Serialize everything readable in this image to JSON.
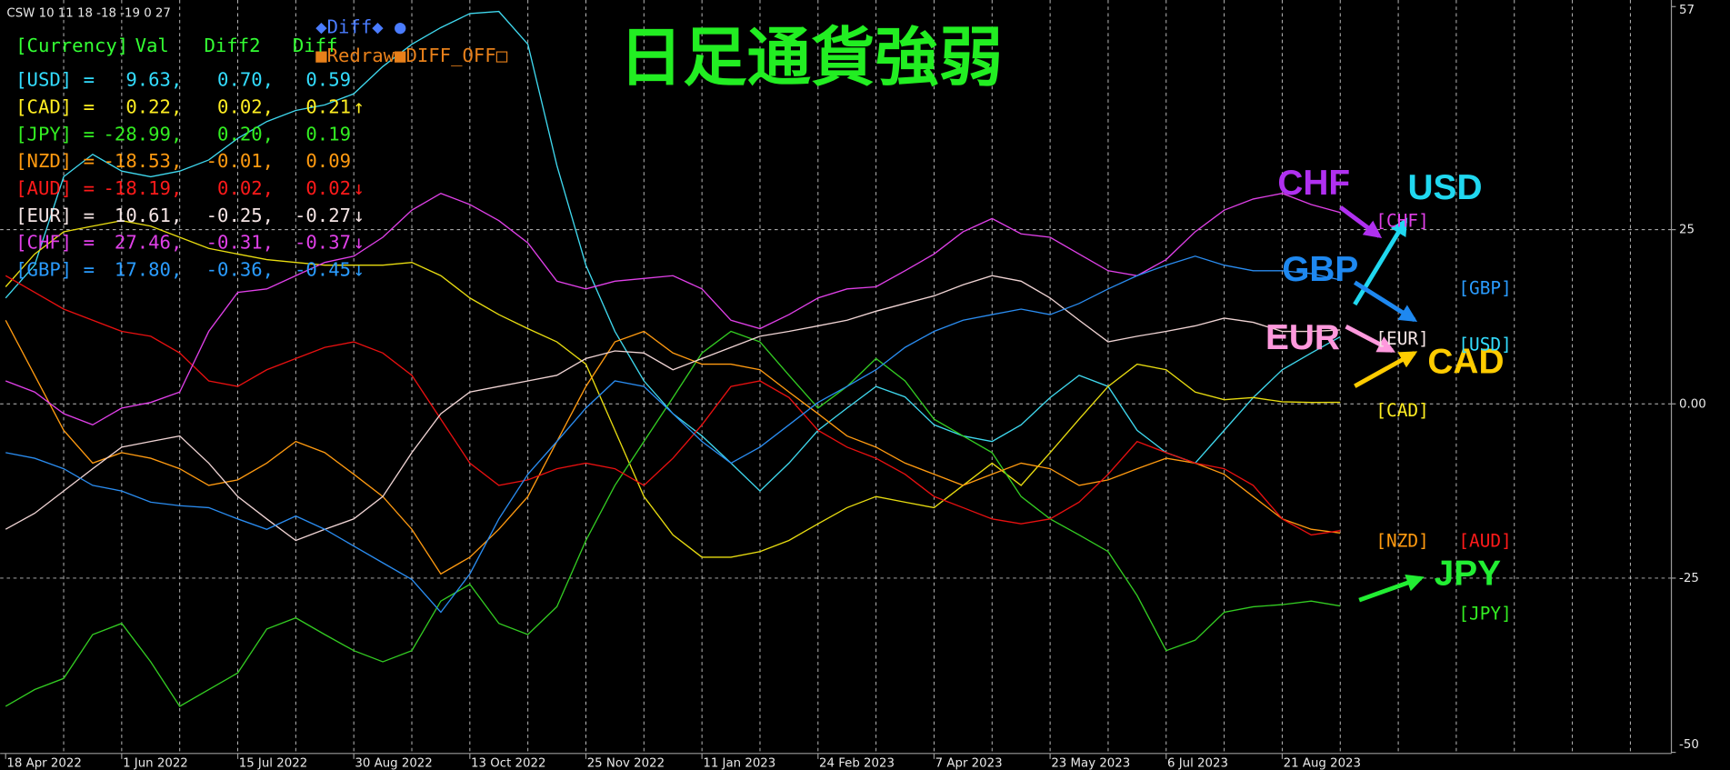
{
  "chart_data": {
    "type": "line",
    "title": "日足通貨強弱",
    "header_text": "CSW 10 11 18 -18 -19 0 27",
    "buttons": [
      "◆Diff◆ ●",
      "■Redraw■DIFF_OFF□"
    ],
    "categories": [
      "18 Apr 2022",
      null,
      null,
      null,
      "1 Jun 2022",
      null,
      null,
      null,
      "15 Jul 2022",
      null,
      null,
      null,
      "30 Aug 2022",
      null,
      null,
      null,
      "13 Oct 2022",
      null,
      null,
      null,
      "25 Nov 2022",
      null,
      null,
      null,
      "11 Jan 2023",
      null,
      null,
      null,
      "24 Feb 2023",
      null,
      null,
      null,
      "7 Apr 2023",
      null,
      null,
      null,
      "23 May 2023",
      null,
      null,
      null,
      "6 Jul 2023",
      null,
      null,
      null,
      "21 Aug 2023",
      null,
      null,
      null,
      null,
      null,
      null,
      null,
      null,
      null,
      null,
      null,
      null
    ],
    "ylim": [
      -50,
      57
    ],
    "yticks": [
      57,
      25,
      {
        "value": 0,
        "label": "0.00"
      },
      -25,
      -50
    ],
    "grid": true,
    "series": [
      {
        "name": "USD",
        "color": "#3fd8ee",
        "values": [
          15.2,
          19.9,
          32.6,
          35.8,
          33.4,
          32.6,
          33.4,
          35.0,
          38.1,
          40.5,
          42.1,
          42.9,
          44.5,
          48.4,
          51.6,
          54.0,
          56.0,
          56.3,
          51.6,
          34.2,
          19.9,
          10.4,
          3.3,
          -1.4,
          -4.6,
          -8.5,
          -12.5,
          -8.5,
          -3.8,
          -0.6,
          2.5,
          1.0,
          -3.0,
          -4.6,
          -5.4,
          -3.0,
          0.9,
          4.1,
          2.5,
          -3.8,
          -7.0,
          -8.5,
          -3.8,
          0.9,
          4.9,
          7.3,
          9.63,
          null,
          null,
          null,
          null,
          null,
          null,
          null,
          null,
          null,
          null
        ]
      },
      {
        "name": "CAD",
        "color": "#e8dc10",
        "values": [
          16.8,
          21.5,
          24.7,
          25.5,
          26.3,
          25.5,
          23.9,
          22.3,
          21.5,
          20.7,
          20.3,
          19.9,
          19.9,
          19.9,
          20.3,
          18.4,
          15.2,
          12.8,
          10.8,
          8.9,
          5.7,
          -3.8,
          -13.3,
          -18.8,
          -22.0,
          -22.0,
          -21.2,
          -19.6,
          -17.2,
          -14.9,
          -13.3,
          -14.1,
          -14.9,
          -11.7,
          -8.5,
          -11.7,
          -7.0,
          -2.2,
          2.5,
          5.7,
          4.9,
          1.7,
          0.6,
          0.9,
          0.3,
          0.2,
          0.22,
          null,
          null,
          null,
          null,
          null,
          null,
          null,
          null,
          null,
          null
        ]
      },
      {
        "name": "JPY",
        "color": "#33cc22",
        "values": [
          -43.4,
          -41.0,
          -39.4,
          -33.1,
          -31.5,
          -37.0,
          -43.4,
          -41.0,
          -38.6,
          -32.3,
          -30.7,
          -33.1,
          -35.4,
          -37.0,
          -35.4,
          -28.3,
          -25.9,
          -31.5,
          -33.1,
          -29.1,
          -19.6,
          -11.7,
          -5.4,
          0.9,
          7.3,
          10.4,
          8.9,
          4.1,
          -0.6,
          2.5,
          6.5,
          3.3,
          -2.2,
          -4.6,
          -7.0,
          -13.3,
          -16.5,
          -18.8,
          -21.2,
          -27.5,
          -35.4,
          -33.9,
          -29.9,
          -29.1,
          -28.8,
          -28.3,
          -28.99,
          null,
          null,
          null,
          null,
          null,
          null,
          null,
          null,
          null,
          null
        ]
      },
      {
        "name": "NZD",
        "color": "#ff9a10",
        "values": [
          12.0,
          4.1,
          -3.8,
          -8.5,
          -7.0,
          -7.8,
          -9.3,
          -11.7,
          -10.9,
          -8.5,
          -5.4,
          -7.0,
          -10.1,
          -13.3,
          -18.0,
          -24.4,
          -22.0,
          -18.0,
          -13.3,
          -5.4,
          2.5,
          8.9,
          10.4,
          7.3,
          5.7,
          5.7,
          4.9,
          1.7,
          -1.4,
          -4.6,
          -6.2,
          -8.5,
          -10.1,
          -11.7,
          -10.1,
          -8.5,
          -9.3,
          -11.7,
          -10.9,
          -9.3,
          -7.8,
          -8.5,
          -10.1,
          -13.3,
          -16.5,
          -18.0,
          -18.53,
          null,
          null,
          null,
          null,
          null,
          null,
          null,
          null,
          null,
          null
        ]
      },
      {
        "name": "AUD",
        "color": "#e81010",
        "values": [
          18.4,
          16.0,
          13.6,
          12.0,
          10.4,
          9.7,
          7.3,
          3.3,
          2.5,
          4.9,
          6.5,
          8.1,
          8.9,
          7.3,
          4.1,
          -2.2,
          -8.5,
          -11.7,
          -10.9,
          -9.3,
          -8.5,
          -9.3,
          -11.7,
          -7.8,
          -3.0,
          2.5,
          3.3,
          0.9,
          -3.8,
          -6.2,
          -7.8,
          -10.1,
          -13.3,
          -14.9,
          -16.5,
          -17.2,
          -16.5,
          -14.1,
          -10.1,
          -5.4,
          -7.0,
          -8.5,
          -9.3,
          -11.7,
          -16.5,
          -18.8,
          -18.19,
          null,
          null,
          null,
          null,
          null,
          null,
          null,
          null,
          null,
          null
        ]
      },
      {
        "name": "EUR",
        "color": "#f0d4d4",
        "values": [
          -18.0,
          -15.7,
          -12.5,
          -9.3,
          -6.2,
          -5.4,
          -4.6,
          -8.5,
          -13.3,
          -16.5,
          -19.6,
          -18.0,
          -16.5,
          -13.3,
          -7.0,
          -1.4,
          1.7,
          2.5,
          3.3,
          4.1,
          6.5,
          7.6,
          7.3,
          4.9,
          6.5,
          8.1,
          9.7,
          10.4,
          11.2,
          12.0,
          13.3,
          14.4,
          15.5,
          17.1,
          18.4,
          17.6,
          15.2,
          12.0,
          8.9,
          9.7,
          10.4,
          11.2,
          12.3,
          11.7,
          10.4,
          10.4,
          10.61,
          null,
          null,
          null,
          null,
          null,
          null,
          null,
          null,
          null,
          null
        ]
      },
      {
        "name": "CHF",
        "color": "#e040e8",
        "values": [
          3.3,
          1.7,
          -1.4,
          -3.0,
          -0.6,
          0.2,
          1.7,
          10.4,
          16.0,
          16.5,
          18.4,
          20.3,
          21.2,
          23.9,
          27.8,
          30.2,
          28.6,
          26.3,
          23.1,
          17.6,
          16.5,
          17.6,
          18.0,
          18.4,
          16.5,
          12.0,
          10.8,
          12.8,
          15.2,
          16.5,
          16.8,
          19.1,
          21.5,
          24.7,
          26.6,
          24.4,
          23.9,
          21.5,
          19.1,
          18.4,
          20.7,
          24.7,
          27.8,
          29.4,
          30.2,
          28.6,
          27.46,
          null,
          null,
          null,
          null,
          null,
          null,
          null,
          null,
          null,
          null
        ]
      },
      {
        "name": "GBP",
        "color": "#2a8cf0",
        "values": [
          -7.0,
          -7.8,
          -9.3,
          -11.7,
          -12.5,
          -14.1,
          -14.6,
          -14.9,
          -16.5,
          -18.0,
          -16.1,
          -18.0,
          -20.4,
          -22.8,
          -25.2,
          -29.9,
          -24.4,
          -16.5,
          -10.1,
          -5.4,
          -0.6,
          3.3,
          2.5,
          -1.4,
          -5.4,
          -8.5,
          -6.2,
          -3.0,
          0.2,
          2.5,
          4.9,
          8.1,
          10.4,
          12.0,
          12.8,
          13.6,
          12.8,
          14.4,
          16.5,
          18.4,
          19.9,
          21.2,
          19.9,
          19.1,
          19.1,
          18.7,
          17.8,
          null,
          null,
          null,
          null,
          null,
          null,
          null,
          null,
          null,
          null
        ]
      }
    ],
    "end_labels": [
      "[CHF]",
      "[GBP]",
      "[EUR]",
      "[USD]",
      "[CAD]",
      "[NZD]",
      "[AUD]",
      "[JPY]"
    ],
    "panel": {
      "color": "#33ff33",
      "header": [
        "[Currency]",
        "Val",
        "Diff2",
        "Diff"
      ],
      "rows": [
        {
          "color": "#33ddff",
          "cells": [
            "[USD] =",
            "9.63,",
            "0.70,",
            "0.59"
          ]
        },
        {
          "color": "#ffee22",
          "cells": [
            "[CAD] =",
            "0.22,",
            "0.02,",
            "0.21",
            "↑"
          ]
        },
        {
          "color": "#33ee22",
          "cells": [
            "[JPY] =",
            "-28.99,",
            "0.20,",
            "0.19"
          ]
        },
        {
          "color": "#ff9a10",
          "cells": [
            "[NZD] =",
            "-18.53,",
            "-0.01,",
            "0.09"
          ]
        },
        {
          "color": "#ff1a1a",
          "cells": [
            "[AUD] =",
            "-18.19,",
            "0.02,",
            "0.02",
            "↓"
          ]
        },
        {
          "color": "#f4e4e4",
          "cells": [
            "[EUR] =",
            "10.61,",
            "-0.25,",
            "-0.27",
            "↓"
          ]
        },
        {
          "color": "#e040e8",
          "cells": [
            "[CHF] =",
            "27.46,",
            "-0.31,",
            "-0.37",
            "↓"
          ]
        },
        {
          "color": "#2a9cff",
          "cells": [
            "[GBP] =",
            "17.80,",
            "-0.36,",
            "-0.45",
            "↓"
          ]
        }
      ]
    }
  }
}
